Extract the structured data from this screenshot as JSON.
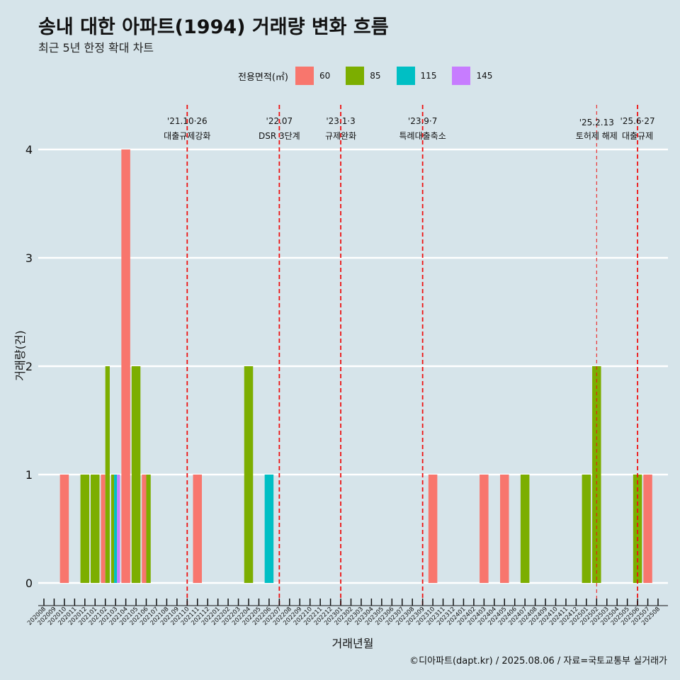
{
  "title": "송내 대한 아파트(1994) 거래량 변화 흐름",
  "subtitle": "최근 5년 한정 확대 차트",
  "legend": {
    "title": "전용면적(㎡)",
    "items": [
      {
        "label": "60",
        "color": "#F8766D"
      },
      {
        "label": "85",
        "color": "#7CAE00"
      },
      {
        "label": "115",
        "color": "#00BFC4"
      },
      {
        "label": "145",
        "color": "#C77CFF"
      }
    ]
  },
  "caption": "©디아파트(dapt.kr) / 2025.08.06 / 자료=국토교통부 실거래가",
  "chart_data": {
    "type": "bar",
    "xlabel": "거래년월",
    "ylabel": "거래량(건)",
    "ylim": [
      0,
      4
    ],
    "yticks": [
      0,
      1,
      2,
      3,
      4
    ],
    "categories": [
      "202008",
      "202009",
      "202010",
      "202011",
      "202012",
      "202101",
      "202102",
      "202103",
      "202104",
      "202105",
      "202106",
      "202107",
      "202108",
      "202109",
      "202110",
      "202111",
      "202112",
      "202201",
      "202202",
      "202203",
      "202204",
      "202205",
      "202206",
      "202207",
      "202208",
      "202209",
      "202210",
      "202211",
      "202212",
      "202301",
      "202302",
      "202303",
      "202304",
      "202305",
      "202306",
      "202307",
      "202308",
      "202309",
      "202310",
      "202311",
      "202312",
      "202401",
      "202402",
      "202403",
      "202404",
      "202405",
      "202406",
      "202407",
      "202408",
      "202409",
      "202410",
      "202411",
      "202412",
      "202501",
      "202502",
      "202503",
      "202504",
      "202505",
      "202506",
      "202507",
      "202508"
    ],
    "series": [
      {
        "name": "60",
        "color": "#F8766D",
        "values": [
          0,
          0,
          1,
          0,
          0,
          0,
          1,
          0,
          4,
          0,
          1,
          0,
          0,
          0,
          0,
          1,
          0,
          0,
          0,
          0,
          0,
          0,
          0,
          0,
          0,
          0,
          0,
          0,
          0,
          0,
          0,
          0,
          0,
          0,
          0,
          0,
          0,
          0,
          1,
          0,
          0,
          0,
          0,
          1,
          0,
          1,
          0,
          0,
          0,
          0,
          0,
          0,
          0,
          0,
          0,
          0,
          0,
          0,
          0,
          1,
          0
        ]
      },
      {
        "name": "85",
        "color": "#7CAE00",
        "values": [
          0,
          0,
          0,
          0,
          1,
          1,
          2,
          1,
          0,
          2,
          1,
          0,
          0,
          0,
          0,
          0,
          0,
          0,
          0,
          0,
          2,
          0,
          0,
          0,
          0,
          0,
          0,
          0,
          0,
          0,
          0,
          0,
          0,
          0,
          0,
          0,
          0,
          0,
          0,
          0,
          0,
          0,
          0,
          0,
          0,
          0,
          0,
          1,
          0,
          0,
          0,
          0,
          0,
          1,
          2,
          0,
          0,
          0,
          1,
          0,
          0
        ]
      },
      {
        "name": "115",
        "color": "#00BFC4",
        "values": [
          0,
          0,
          0,
          0,
          0,
          0,
          0,
          1,
          0,
          0,
          0,
          0,
          0,
          0,
          0,
          0,
          0,
          0,
          0,
          0,
          0,
          0,
          1,
          0,
          0,
          0,
          0,
          0,
          0,
          0,
          0,
          0,
          0,
          0,
          0,
          0,
          0,
          0,
          0,
          0,
          0,
          0,
          0,
          0,
          0,
          0,
          0,
          0,
          0,
          0,
          0,
          0,
          0,
          0,
          0,
          0,
          0,
          0,
          0,
          0,
          0
        ]
      },
      {
        "name": "145",
        "color": "#C77CFF",
        "values": [
          0,
          0,
          0,
          0,
          0,
          0,
          0,
          1,
          0,
          0,
          0,
          0,
          0,
          0,
          0,
          0,
          0,
          0,
          0,
          0,
          0,
          0,
          0,
          0,
          0,
          0,
          0,
          0,
          0,
          0,
          0,
          0,
          0,
          0,
          0,
          0,
          0,
          0,
          0,
          0,
          0,
          0,
          0,
          0,
          0,
          0,
          0,
          0,
          0,
          0,
          0,
          0,
          0,
          0,
          0,
          0,
          0,
          0,
          0,
          0,
          0
        ]
      }
    ],
    "annotations": [
      {
        "date": "'21.10·26",
        "label": "대출규제강화",
        "x": 14.0
      },
      {
        "date": "'22.07",
        "label": "DSR 3단계",
        "x": 23.0
      },
      {
        "date": "'23.1·3",
        "label": "규제완화",
        "x": 29.0
      },
      {
        "date": "'23.9·7",
        "label": "특례대출축소",
        "x": 37.0
      },
      {
        "date": "'25.2.13",
        "label": "토허제 해제",
        "x": 54.0
      },
      {
        "date": "'25.6·27",
        "label": "대출규제",
        "x": 58.0
      }
    ]
  }
}
